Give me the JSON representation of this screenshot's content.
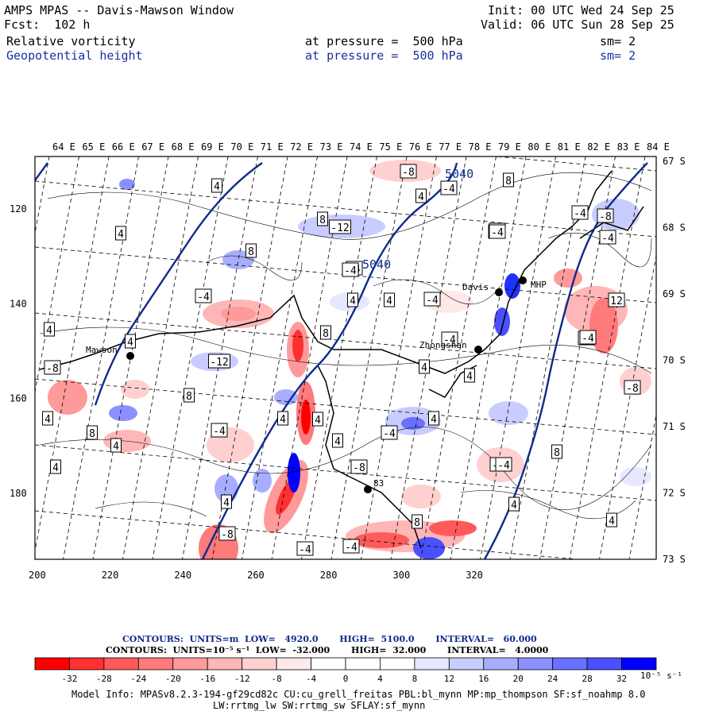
{
  "header": {
    "title": "AMPS MPAS -- Davis-Mawson Window",
    "forecast": "Fcst:  102 h",
    "init": "Init: 00 UTC Wed 24 Sep 25",
    "valid": "Valid: 06 UTC Sun 28 Sep 25",
    "field1": {
      "name": "Relative vorticity",
      "level": "at pressure =  500 hPa",
      "smooth": "sm= 2"
    },
    "field2": {
      "name": "Geopotential height",
      "level": "at pressure =  500 hPa",
      "smooth": "sm= 2"
    }
  },
  "map": {
    "top_lon_labels": [
      "64 E",
      "65 E",
      "66 E",
      "67 E",
      "68 E",
      "69 E",
      "70 E",
      "71 E",
      "72 E",
      "73 E",
      "74 E",
      "75 E",
      "76 E",
      "77 E",
      "78 E",
      "79 E",
      "80 E",
      "81 E",
      "82 E",
      "83 E",
      "84 E"
    ],
    "right_lat_labels": [
      "67 S",
      "68 S",
      "69 S",
      "70 S",
      "71 S",
      "72 S",
      "73 S"
    ],
    "left_y_labels": [
      "120",
      "140",
      "160",
      "180"
    ],
    "bottom_x_labels": [
      "200",
      "220",
      "240",
      "260",
      "280",
      "300",
      "320"
    ],
    "height_labels": [
      "5040",
      "5040"
    ],
    "stations": [
      {
        "name": "Mawson"
      },
      {
        "name": "Davis"
      },
      {
        "name": "Zhongshan"
      },
      {
        "name": "MHP"
      },
      {
        "name": "83"
      }
    ],
    "vorticity_labels": [
      "-8",
      "-12",
      "-4",
      "-4",
      "4",
      "8",
      "-4",
      "4",
      "8",
      "-4",
      "-8",
      "4",
      "8",
      "-12",
      "4",
      "-4",
      "-4",
      "-4",
      "4",
      "-4",
      "-4",
      "-8",
      "4",
      "8",
      "4",
      "4",
      "-4",
      "4",
      "-4",
      "4",
      "8",
      "-4",
      "-8",
      "4",
      "4",
      "-4",
      "-8",
      "4",
      "4",
      "4",
      "4",
      "-4",
      "8",
      "12",
      "-4",
      "4",
      "-4",
      "8",
      "8",
      "4",
      "-4",
      "-8",
      "-4",
      "-4",
      "4"
    ]
  },
  "legend": {
    "contours1": "CONTOURS:  UNITS=m  LOW=   4920.0       HIGH=  5100.0       INTERVAL=   60.000",
    "contours2": "CONTOURS:  UNITS=10⁻⁵ s⁻¹  LOW=  -32.000       HIGH=  32.000       INTERVAL=   4.0000",
    "ticks": [
      "-32",
      "-28",
      "-24",
      "-20",
      "-16",
      "-12",
      "-8",
      "-4",
      "0",
      "4",
      "8",
      "12",
      "16",
      "20",
      "24",
      "28",
      "32"
    ],
    "unit": "10⁻⁵ s⁻¹",
    "colors": [
      "#ff0000",
      "#ff3030",
      "#ff5a5a",
      "#ff7a7a",
      "#ff9a9a",
      "#ffb6b6",
      "#ffd0d0",
      "#ffe8e8",
      "#ffffff",
      "#ffffff",
      "#e6e8ff",
      "#c8ccff",
      "#a8aeff",
      "#8a90ff",
      "#6a70ff",
      "#4a50ff",
      "#0000ff"
    ]
  },
  "footer": {
    "line1": "Model Info: MPASv8.2.3-194-gf29cd82c CU:cu_grell_freitas PBL:bl_mynn MP:mp_thompson SF:sf_noahmp 8.0",
    "line2": "LW:rrtmg_lw SW:rrtmg_sw SFLAY:sf_mynn"
  }
}
